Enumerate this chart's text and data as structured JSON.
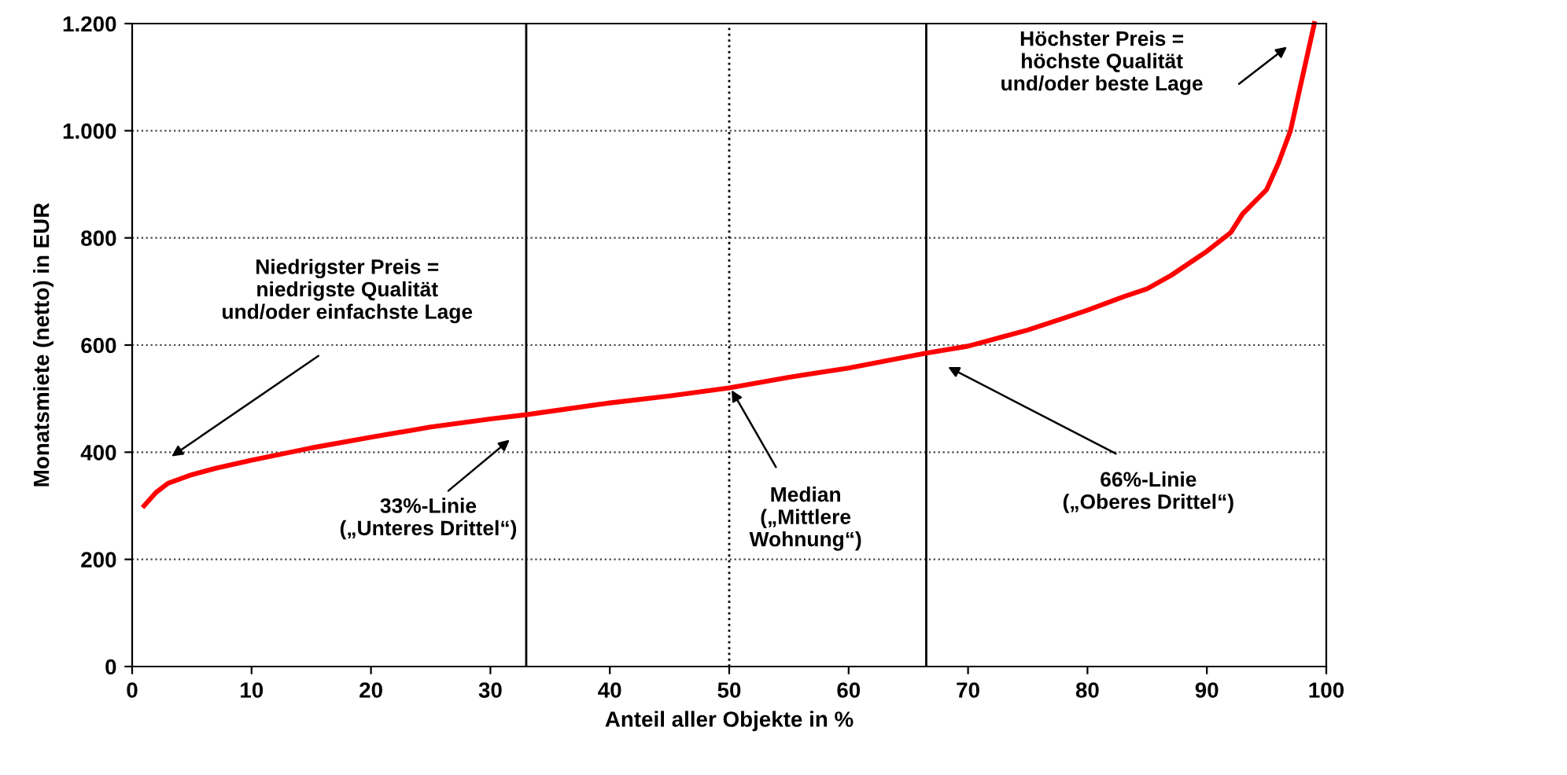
{
  "chart_data": {
    "type": "line",
    "xlabel": "Anteil aller Objekte in %",
    "ylabel": "Monatsmiete (netto) in EUR",
    "x": [
      1,
      2,
      3,
      5,
      7,
      10,
      15,
      20,
      25,
      30,
      33,
      40,
      45,
      50,
      55,
      60,
      66.5,
      70,
      72,
      75,
      78,
      80,
      83,
      85,
      87,
      90,
      92,
      93,
      95,
      96,
      97,
      98,
      99
    ],
    "series": [
      {
        "color": "#ff0000",
        "values": [
          300,
          325,
          342,
          358,
          370,
          385,
          408,
          428,
          447,
          462,
          470,
          492,
          505,
          520,
          540,
          557,
          585,
          598,
          610,
          628,
          650,
          665,
          690,
          705,
          730,
          775,
          810,
          845,
          890,
          940,
          1000,
          1100,
          1200
        ]
      }
    ],
    "xlim": [
      0,
      100
    ],
    "xticks": [
      0,
      10,
      20,
      30,
      40,
      50,
      60,
      70,
      80,
      90,
      100
    ],
    "ylim": [
      0,
      1200
    ],
    "yticks": [
      0,
      200,
      400,
      600,
      800,
      {
        "value": 1000,
        "label": "1.000"
      },
      {
        "value": 1200,
        "label": "1.200"
      }
    ],
    "grid": "y",
    "marker": "none",
    "line_style": "solid",
    "ref_lines": [
      {
        "axis": "x",
        "value": 33,
        "color": "#000000",
        "line_style": "solid"
      },
      {
        "axis": "x",
        "value": 50,
        "color": "#000000",
        "line_style": "dotted"
      },
      {
        "axis": "x",
        "value": 66.5,
        "color": "#000000",
        "line_style": "solid"
      }
    ],
    "annotations": [
      "Niedrigster Preis =\nniedrigste Qualität\nund/oder einfachste Lage",
      "33%-Linie\n(„Unteres Drittel“)",
      {
        "text": "Median\n(„Mittlere\nWohnung“)",
        "x": 50.2,
        "y": 516
      },
      "66%-Linie\n(„Oberes Drittel“)",
      "Höchster Preis =\nhöchste Qualität\nund/oder beste Lage"
    ]
  }
}
